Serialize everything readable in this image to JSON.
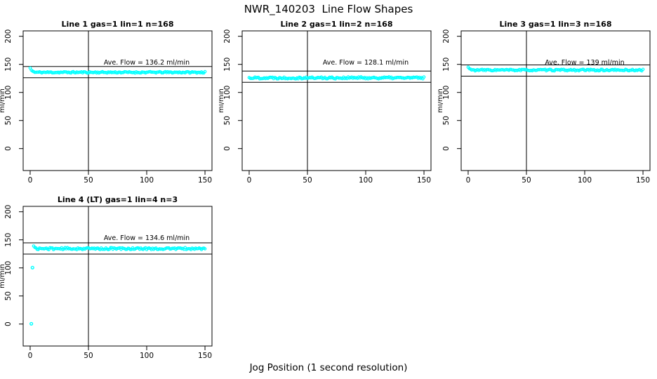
{
  "figure": {
    "background_color": "#FFFFFF",
    "axis_color": "#000000"
  },
  "chart_data": {
    "type": "scatter",
    "title": "NWR_140203  Line Flow Shapes",
    "xlabel": "Jog Position (1 second resolution)",
    "ylabel": "ml/min",
    "xlim": [
      0,
      150
    ],
    "ylim": [
      0,
      200
    ],
    "x_ticks": [
      0,
      50,
      100,
      150
    ],
    "y_ticks": [
      0,
      50,
      100,
      150,
      200
    ],
    "grid": false,
    "legend": "none",
    "point_color": "#00FFFF",
    "marker": "open-circle",
    "vline_x": 50,
    "annotation_x": 100,
    "annotation_y": 153.5,
    "panels": [
      {
        "title": "Line 1 gas=1 lin=1 n=168",
        "line": 1,
        "gas": 1,
        "lin": 1,
        "n": 168,
        "ylabel": "ml/min",
        "ave_flow": 136.2,
        "annotation": "Ave. Flow =  136.2  ml/min",
        "ref_lines": [
          126.2,
          146.2
        ],
        "series": {
          "x_start": 0,
          "x_end": 150,
          "x_step": 1,
          "flat_y": 135.8,
          "noise": 1.3,
          "seed": 11,
          "transient": [
            [
              0,
              143.5
            ],
            [
              1,
              139.8
            ],
            [
              2,
              138.0
            ],
            [
              3,
              137.0
            ]
          ],
          "extra_points": []
        }
      },
      {
        "title": "Line 2 gas=1 lin=2 n=168",
        "line": 2,
        "gas": 1,
        "lin": 2,
        "n": 168,
        "ylabel": "ml/min",
        "ave_flow": 128.1,
        "annotation": "Ave. Flow =  128.1  ml/min",
        "ref_lines": [
          118.1,
          138.1
        ],
        "series": {
          "x_start": 0,
          "x_end": 150,
          "x_step": 1,
          "flat_y": 126.0,
          "noise": 1.8,
          "seed": 22,
          "transient": [],
          "extra_points": []
        }
      },
      {
        "title": "Line 3 gas=1 lin=3 n=168",
        "line": 3,
        "gas": 1,
        "lin": 3,
        "n": 168,
        "ylabel": "ml/min",
        "ave_flow": 139,
        "annotation": "Ave. Flow =  139  ml/min",
        "ref_lines": [
          129.0,
          149.0
        ],
        "series": {
          "x_start": 0,
          "x_end": 150,
          "x_step": 1,
          "flat_y": 139.8,
          "noise": 1.4,
          "seed": 33,
          "transient": [
            [
              0,
              145.0
            ],
            [
              1,
              142.5
            ],
            [
              2,
              141.5
            ]
          ],
          "extra_points": []
        }
      },
      {
        "title": "Line 4 (LT) gas=1 lin=4 n=3",
        "line": 4,
        "gas": 1,
        "lin": 4,
        "n": 3,
        "ylabel": "ml/min",
        "ave_flow": 134.6,
        "annotation": "Ave. Flow =  134.6  ml/min",
        "ref_lines": [
          124.6,
          144.6
        ],
        "series": {
          "x_start": 3,
          "x_end": 150,
          "x_step": 1,
          "flat_y": 134.3,
          "noise": 1.8,
          "seed": 44,
          "transient": [
            [
              3,
              139.0
            ],
            [
              4,
              136.5
            ]
          ],
          "extra_points": [
            [
              1,
              0.5
            ],
            [
              2,
              100.5
            ]
          ]
        }
      }
    ]
  }
}
